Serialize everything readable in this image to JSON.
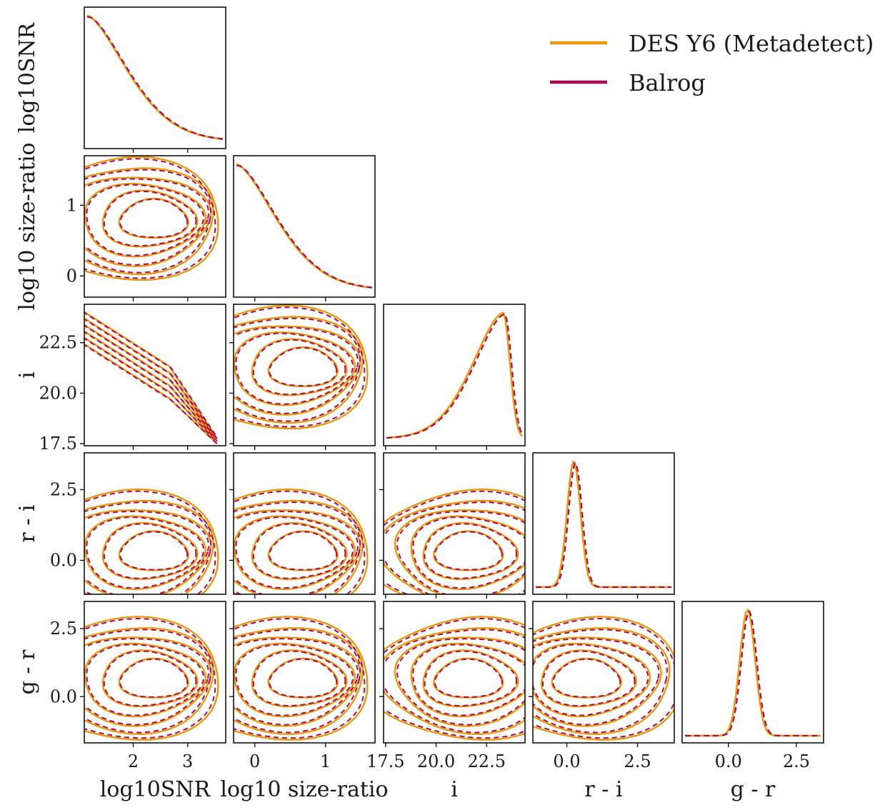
{
  "chart_data": {
    "type": "corner",
    "legend": {
      "placement": "top-right",
      "entries": [
        {
          "label": "DES Y6 (Metadetect)",
          "color": "#E69A0F",
          "dash": "solid"
        },
        {
          "label": "Balrog",
          "color": "#B0074E",
          "dash": "dashed"
        }
      ]
    },
    "variables": [
      {
        "key": "snr",
        "label": "log10SNR",
        "range": [
          1.1,
          3.7
        ],
        "ticks": [
          "2",
          "3"
        ],
        "tick_values": [
          2,
          3
        ]
      },
      {
        "key": "size",
        "label": "log10 size-ratio",
        "range": [
          -0.3,
          1.7
        ],
        "ticks": [
          "0",
          "1"
        ],
        "tick_values": [
          0,
          1
        ]
      },
      {
        "key": "i",
        "label": "i",
        "range": [
          17.4,
          24.4
        ],
        "ticks": [
          "17.5",
          "20.0",
          "22.5"
        ],
        "tick_values": [
          17.5,
          20.0,
          22.5
        ]
      },
      {
        "key": "ri",
        "label": "r - i",
        "range": [
          -1.2,
          3.8
        ],
        "ticks": [
          "0.0",
          "2.5"
        ],
        "tick_values": [
          0.0,
          2.5
        ]
      },
      {
        "key": "gr",
        "label": "g - r",
        "range": [
          -1.7,
          3.5
        ],
        "ticks": [
          "0.0",
          "2.5"
        ],
        "tick_values": [
          0.0,
          2.5
        ]
      }
    ],
    "marginals": [
      {
        "variable": "snr",
        "shape": "decay",
        "peak_at": 1.15
      },
      {
        "variable": "size",
        "shape": "decay",
        "peak_at": -0.1
      },
      {
        "variable": "i",
        "shape": "skewed-peak",
        "peak_at": 23.6
      },
      {
        "variable": "ri",
        "shape": "peak",
        "peak_at": 0.35
      },
      {
        "variable": "gr",
        "shape": "peak",
        "peak_at": 0.7
      }
    ],
    "series": [
      {
        "name": "DES Y6 (Metadetect)"
      },
      {
        "name": "Balrog"
      }
    ]
  }
}
